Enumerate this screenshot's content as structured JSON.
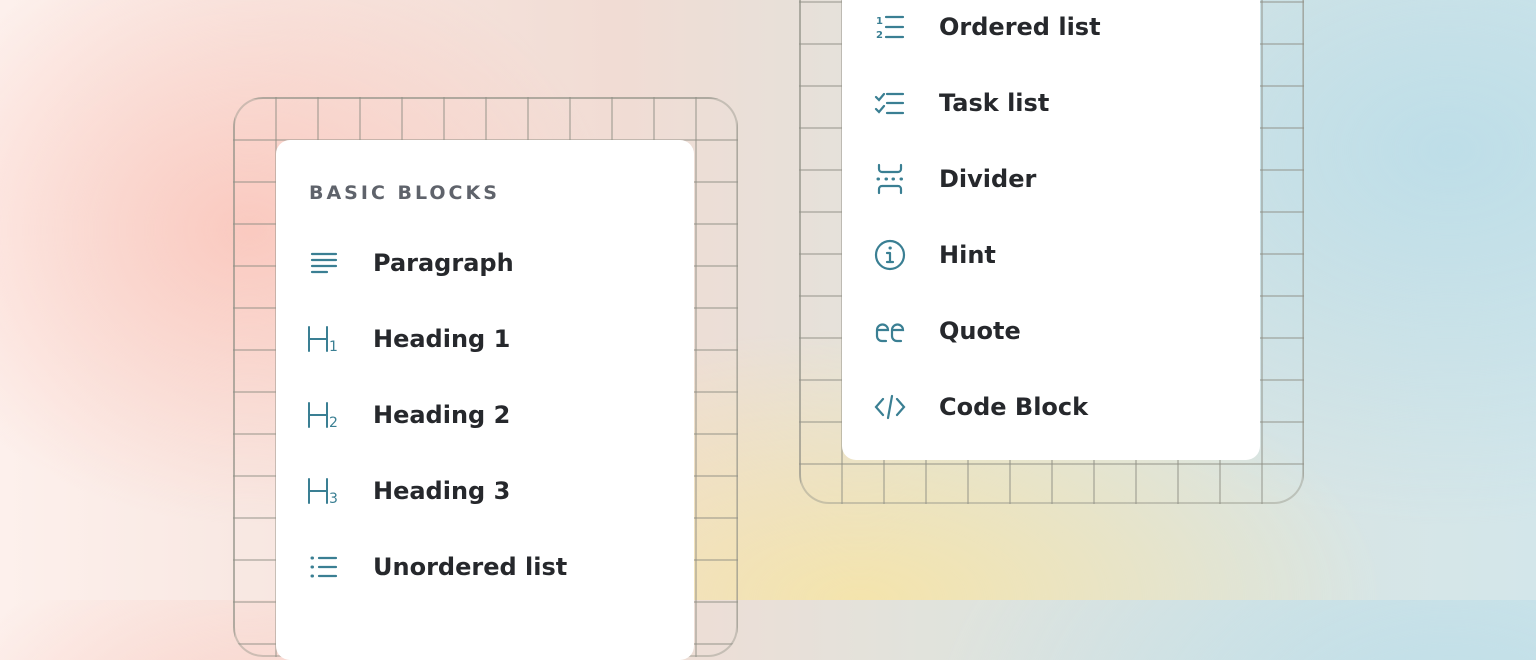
{
  "accent_color": "#3a7f93",
  "left_menu": {
    "section_title": "BASIC BLOCKS",
    "items": [
      {
        "label": "Paragraph",
        "icon": "paragraph-icon"
      },
      {
        "label": "Heading 1",
        "icon": "heading-1-icon"
      },
      {
        "label": "Heading 2",
        "icon": "heading-2-icon"
      },
      {
        "label": "Heading 3",
        "icon": "heading-3-icon"
      },
      {
        "label": "Unordered list",
        "icon": "unordered-list-icon"
      }
    ]
  },
  "right_menu": {
    "items": [
      {
        "label": "Ordered list",
        "icon": "ordered-list-icon"
      },
      {
        "label": "Task list",
        "icon": "task-list-icon"
      },
      {
        "label": "Divider",
        "icon": "divider-icon"
      },
      {
        "label": "Hint",
        "icon": "info-icon"
      },
      {
        "label": "Quote",
        "icon": "quote-icon"
      },
      {
        "label": "Code Block",
        "icon": "code-icon"
      }
    ]
  }
}
